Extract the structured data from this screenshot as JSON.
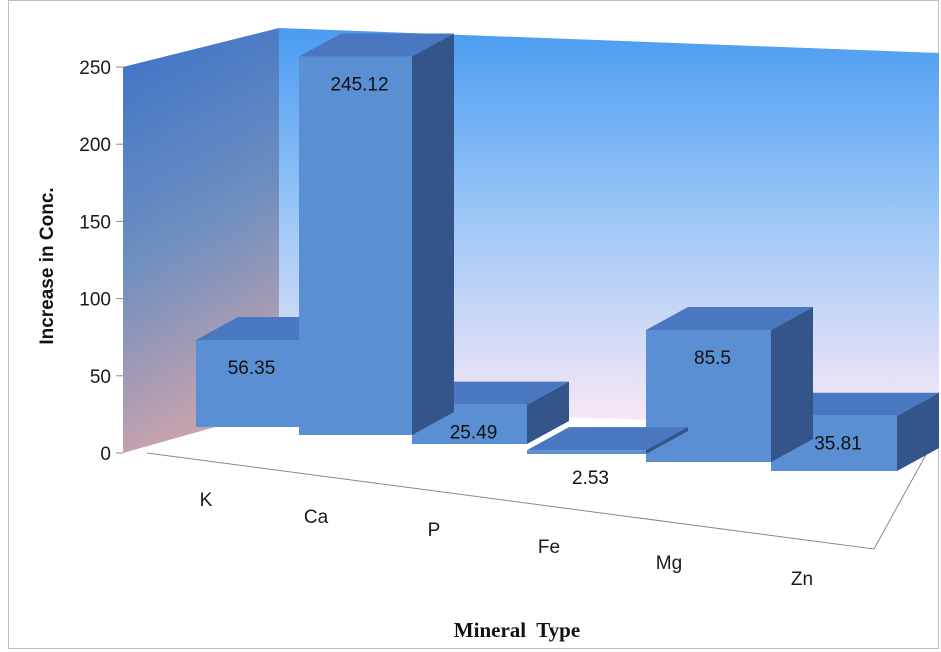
{
  "chart_data": {
    "type": "bar",
    "style": "3d-column",
    "categories": [
      "K",
      "Ca",
      "P",
      "Fe",
      "Mg",
      "Zn"
    ],
    "values": [
      56.35,
      245.12,
      25.49,
      2.53,
      85.5,
      35.81
    ],
    "data_labels": [
      "56.35",
      "245.12",
      "25.49",
      "2.53",
      "85.5",
      "35.81"
    ],
    "ylim": [
      0,
      250
    ],
    "yticks": [
      "0",
      "50",
      "100",
      "150",
      "200",
      "250"
    ],
    "ylabel": "Increase in Conc.",
    "xlabel": "Mineral  Type",
    "legend": "none",
    "grid": false,
    "colors": {
      "bar_front": "#5b8fd4",
      "bar_top": "#4a78c0",
      "bar_side": "#33558a",
      "back_wall_top": "#4a9cf2",
      "back_wall_bottom": "#f8eaf4",
      "side_wall_top": "#3a72c8",
      "side_wall_bottom": "#c2a0ac"
    }
  }
}
